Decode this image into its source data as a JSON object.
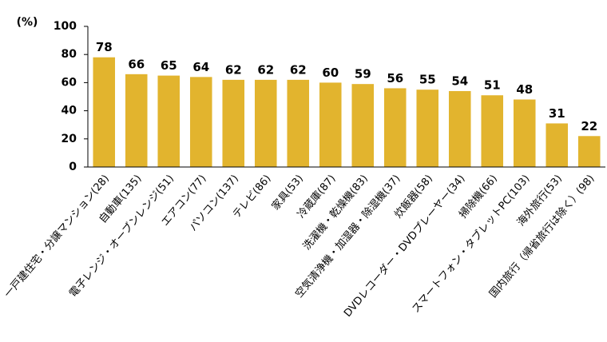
{
  "chart_data": {
    "type": "bar",
    "y_axis_label": "(%)",
    "categories": [
      "一戸建住宅・分譲マンション(28)",
      "自動車(135)",
      "電子レンジ・オーブンレンジ(51)",
      "エアコン(77)",
      "パソコン(137)",
      "テレビ(86)",
      "家具(53)",
      "冷蔵庫(87)",
      "洗濯機・乾燥機(83)",
      "空気清浄機・加湿器・除湿機(37)",
      "炊飯器(58)",
      "DVDレコーダー・DVDプレーヤー(34)",
      "掃除機(66)",
      "スマートフォン・タブレットPC(103)",
      "海外旅行(53)",
      "国内旅行（帰省旅行は除く）(98)"
    ],
    "values": [
      78,
      66,
      65,
      64,
      62,
      62,
      62,
      60,
      59,
      56,
      55,
      54,
      51,
      48,
      31,
      22
    ],
    "color": "#e2b42e",
    "ylim": [
      0,
      100
    ],
    "yticks": [
      0,
      20,
      40,
      60,
      80,
      100
    ],
    "grid": false
  }
}
